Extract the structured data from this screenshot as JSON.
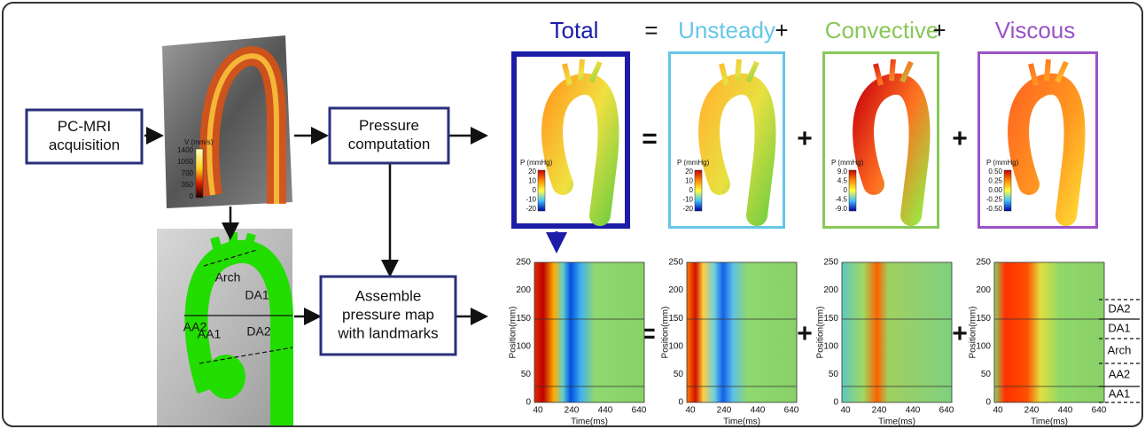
{
  "header": {
    "terms": [
      {
        "text": "Total",
        "color": "#1c1ca8"
      },
      {
        "text": "=",
        "color": "#111111"
      },
      {
        "text": "Unsteady",
        "color": "#66c6e8"
      },
      {
        "text": "+",
        "color": "#111111"
      },
      {
        "text": "Convective",
        "color": "#88c858"
      },
      {
        "text": "+",
        "color": "#111111"
      },
      {
        "text": "Viscous",
        "color": "#9a52c8"
      }
    ]
  },
  "boxes": [
    {
      "lines": [
        "PC-MRI",
        "acquisition"
      ]
    },
    {
      "lines": [
        "Pressure",
        "computation"
      ]
    },
    {
      "lines": [
        "Assemble",
        "pressure map",
        "with landmarks"
      ]
    }
  ],
  "mri_colorbar": {
    "label": "V (mm/s)",
    "ticks": [
      "1400",
      "1050",
      "700",
      "350",
      "0"
    ]
  },
  "aorta_labels": [
    "Arch",
    "DA1",
    "AA2",
    "AA1",
    "DA2"
  ],
  "pressure_panels": [
    {
      "label": "P (mmHg)",
      "ticks": [
        "20",
        "10",
        "0",
        "-10",
        "-20"
      ]
    },
    {
      "label": "P (mmHg)",
      "ticks": [
        "20",
        "10",
        "0",
        "-10",
        "-20"
      ]
    },
    {
      "label": "P (mmHg)",
      "ticks": [
        "9.0",
        "4.5",
        "0",
        "-4.5",
        "-9.0"
      ]
    },
    {
      "label": "P (mmHg)",
      "ticks": [
        "0.50",
        "0.25",
        "0.00",
        "-0.25",
        "-0.50"
      ]
    }
  ],
  "operators": [
    "=",
    "+",
    "+"
  ],
  "plots": {
    "ylabel": "Position(mm)",
    "xlabel": "Time(ms)",
    "yticks": [
      "0",
      "50",
      "100",
      "150",
      "200",
      "250"
    ],
    "xticks": [
      "40",
      "240",
      "440",
      "640"
    ]
  },
  "landmarks": [
    "DA2",
    "DA1",
    "Arch",
    "AA2",
    "AA1"
  ]
}
